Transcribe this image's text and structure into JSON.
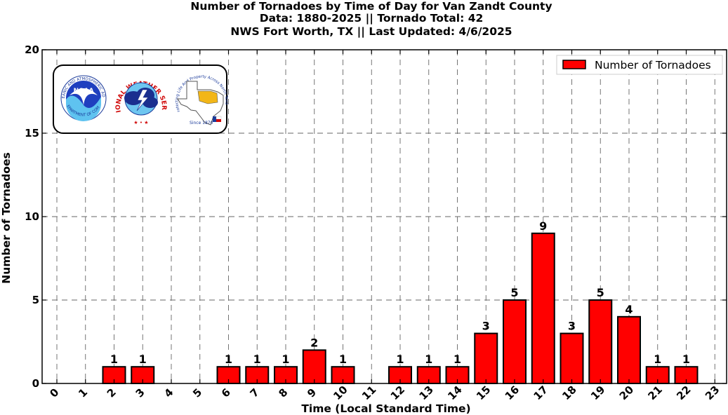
{
  "chart_data": {
    "type": "bar",
    "title": [
      "Number of Tornadoes by Time of Day for Van Zandt County",
      "Data: 1880-2025 || Tornado Total: 42",
      "NWS Fort Worth, TX || Last Updated: 4/6/2025"
    ],
    "xlabel": "Time (Local Standard Time)",
    "ylabel": "Number of Tornadoes",
    "categories": [
      "0",
      "1",
      "2",
      "3",
      "4",
      "5",
      "6",
      "7",
      "8",
      "9",
      "10",
      "11",
      "12",
      "13",
      "14",
      "15",
      "16",
      "17",
      "18",
      "19",
      "20",
      "21",
      "22",
      "23"
    ],
    "series": [
      {
        "name": "Number of Tornadoes",
        "color": "#ff0000",
        "values": [
          0,
          0,
          1,
          1,
          0,
          0,
          1,
          1,
          1,
          2,
          1,
          0,
          1,
          1,
          1,
          3,
          5,
          9,
          3,
          5,
          4,
          1,
          1,
          0
        ]
      }
    ],
    "ylim": [
      0,
      20
    ],
    "yticks": [
      0,
      5,
      10,
      15,
      20
    ],
    "grid": true,
    "grid_style": "dashed",
    "legend_position": "top-right",
    "bar_edge_color": "#000000",
    "data_labels": true
  },
  "logo_panel": {
    "noaa_text": "NOAA",
    "noaa_ring_top": "NATIONAL OCEANIC AND ATMOSPHERIC ADMINISTRATION",
    "noaa_ring_bottom": "U.S. DEPARTMENT OF COMMERCE",
    "nws_ring_text": "NATIONAL WEATHER SERVICE",
    "nwsfw_ring_text": "Protecting Life And Property Across North Texas",
    "nwsfw_since": "Since 1870"
  }
}
